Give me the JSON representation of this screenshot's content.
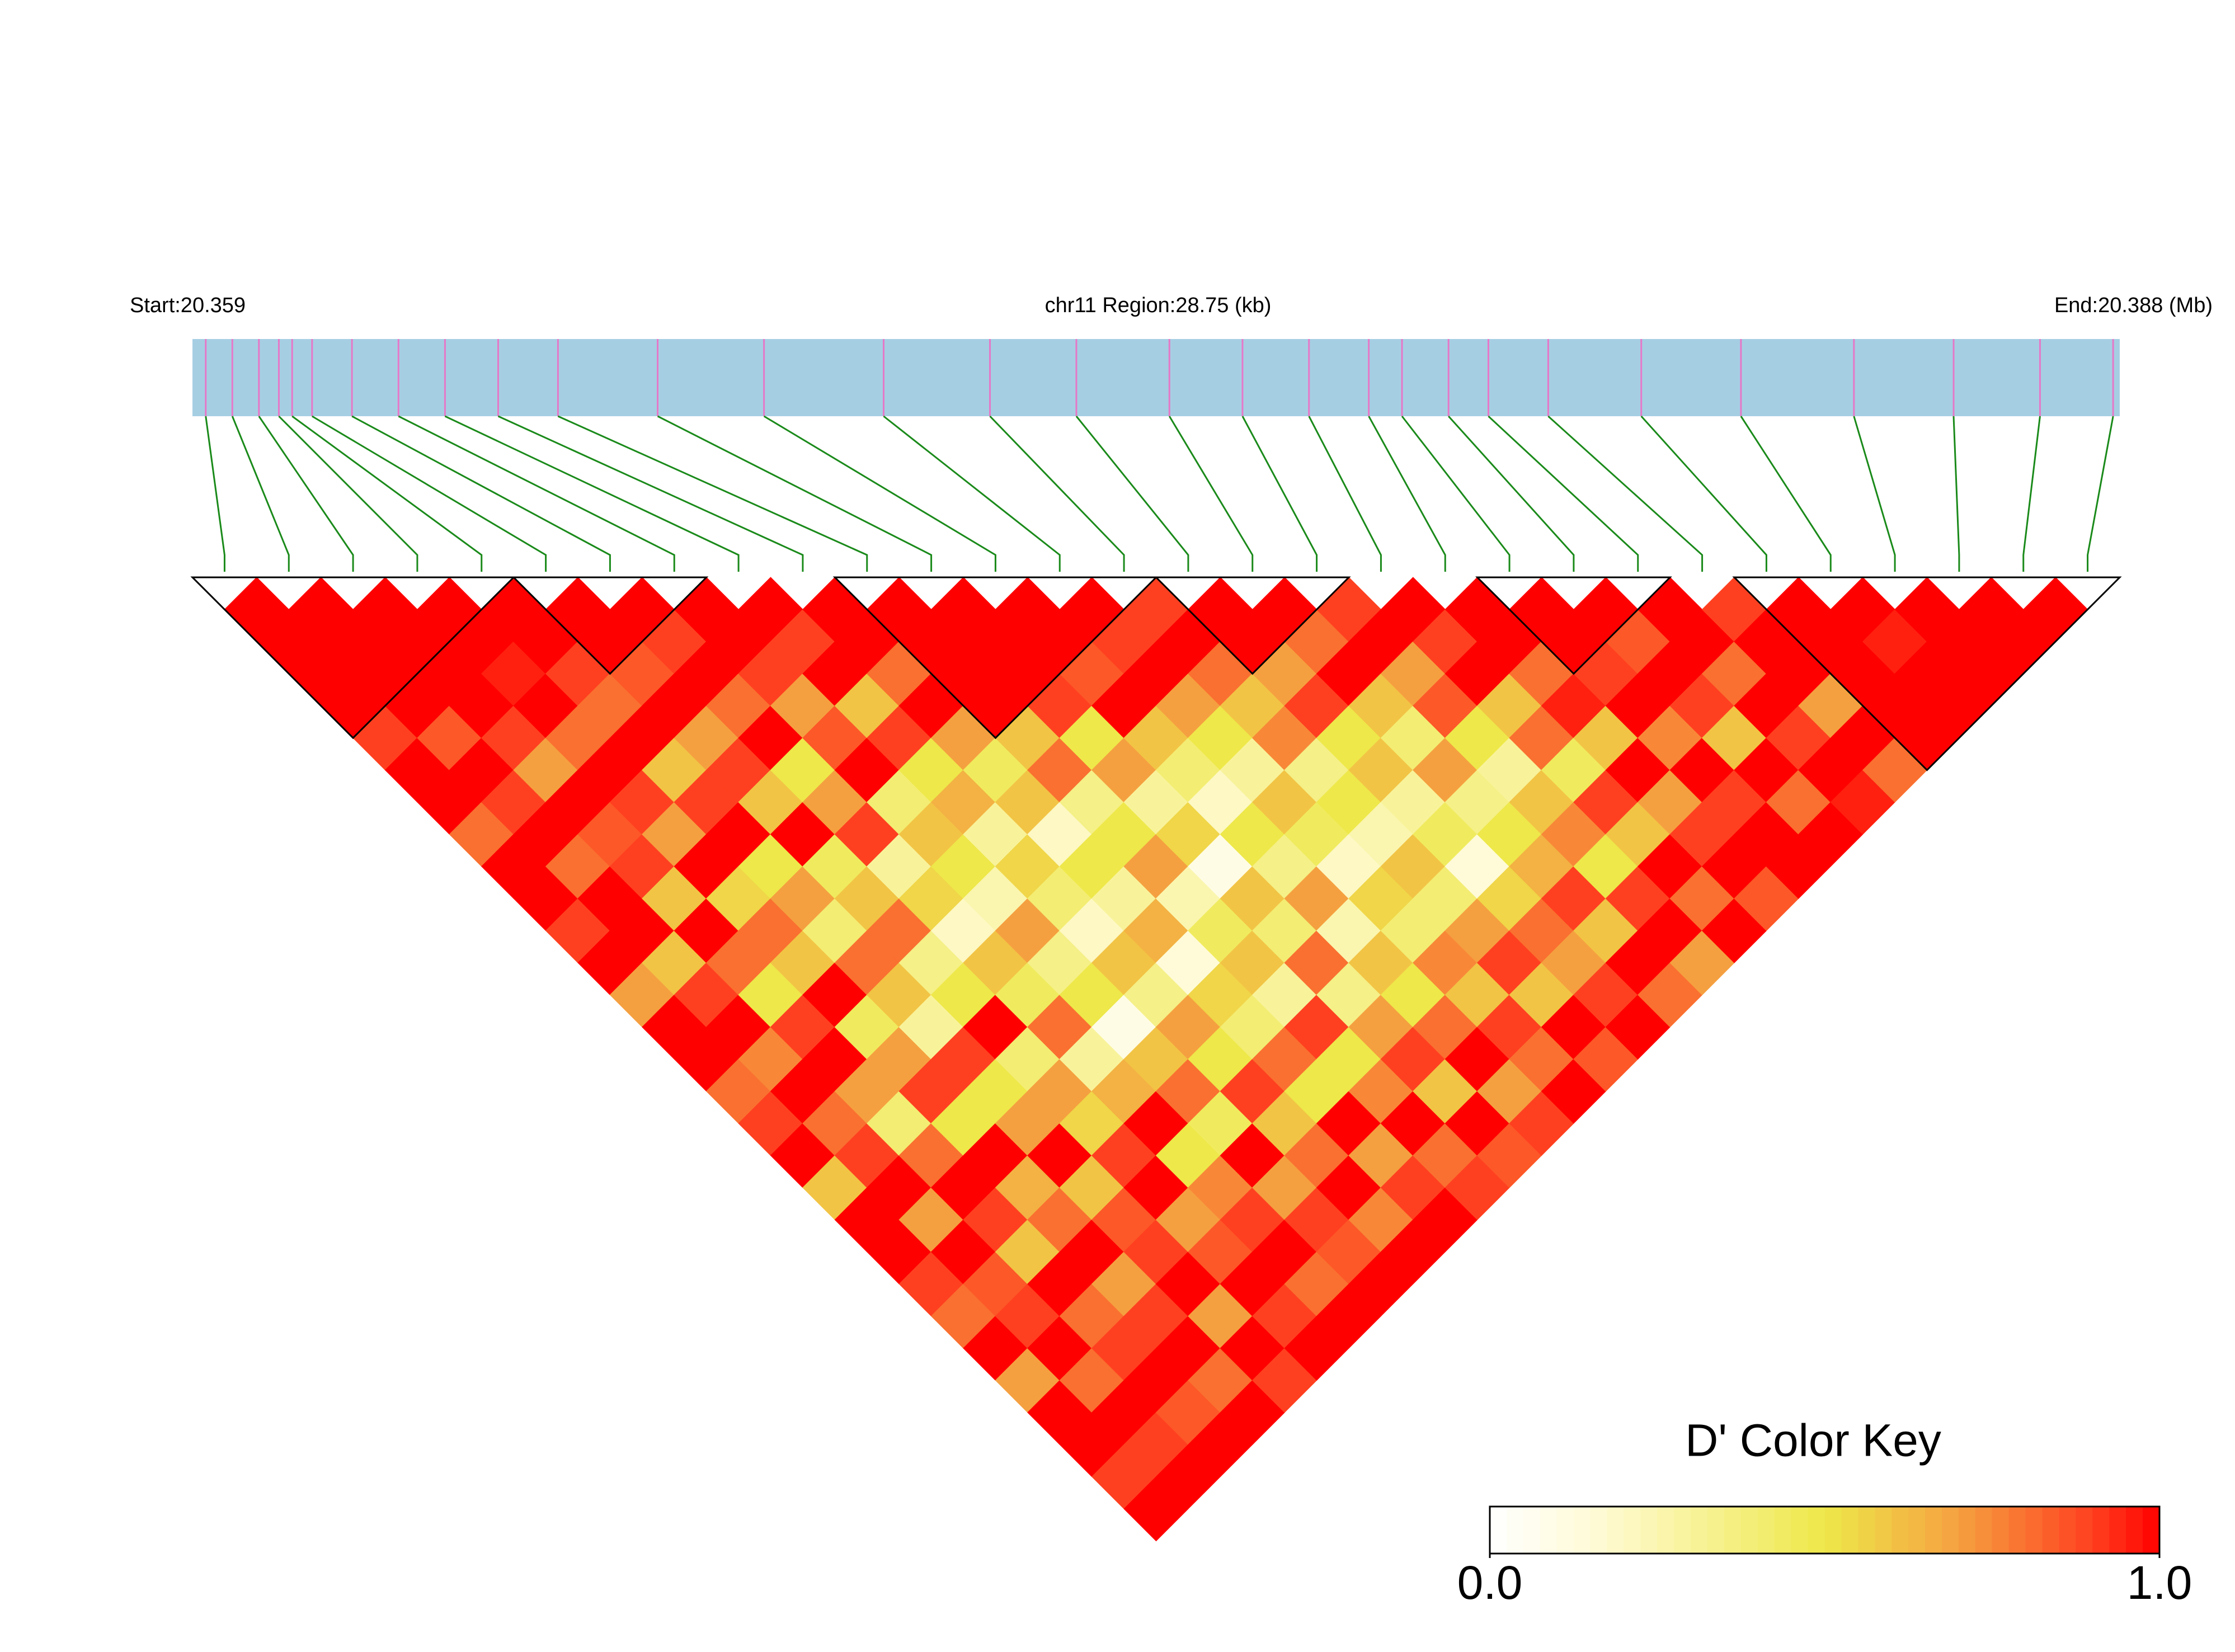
{
  "chart_data": {
    "type": "ld_heatmap",
    "start_label": "Start:20.359",
    "region_label": "chr11 Region:28.75 (kb)",
    "end_label": "End:20.388 (Mb)",
    "xlim": [
      20.359,
      20.388
    ],
    "positions": [
      20.3592,
      20.3596,
      20.36,
      20.3603,
      20.3605,
      20.3608,
      20.3614,
      20.3621,
      20.3628,
      20.3636,
      20.3645,
      20.366,
      20.3676,
      20.3694,
      20.371,
      20.3723,
      20.3737,
      20.3748,
      20.3758,
      20.3767,
      20.3772,
      20.3779,
      20.3785,
      20.3794,
      20.3808,
      20.3823,
      20.384,
      20.3855,
      20.3868,
      20.3879
    ],
    "matrix": [
      [
        1,
        1,
        1,
        1,
        0.9,
        1,
        1,
        0.8,
        1,
        1,
        0.9,
        1,
        0.7,
        1,
        1,
        0.8,
        0.9,
        1,
        0.6,
        1,
        1,
        0.9,
        0.8,
        1,
        0.7,
        1,
        1,
        0.9,
        1
      ],
      [
        1,
        1,
        1,
        1,
        0.85,
        1,
        0.9,
        1,
        0.8,
        1,
        1,
        0.6,
        0.9,
        1,
        0.75,
        1,
        0.8,
        0.9,
        1,
        0.7,
        1,
        0.85,
        0.9,
        1,
        0.8,
        1,
        0.9,
        1
      ],
      [
        1,
        1,
        1,
        1,
        0.9,
        0.7,
        1,
        0.85,
        0.9,
        0.6,
        1,
        0.8,
        0.5,
        0.9,
        1,
        0.7,
        0.4,
        0.8,
        1,
        0.9,
        0.6,
        1,
        0.8,
        0.9,
        1,
        0.85,
        1
      ],
      [
        1,
        1,
        0.95,
        1,
        0.8,
        1,
        0.9,
        0.7,
        1,
        0.55,
        0.8,
        0.6,
        1,
        0.45,
        0.7,
        0.9,
        0.5,
        1,
        0.65,
        0.8,
        1,
        0.7,
        0.9,
        1,
        0.8,
        1
      ],
      [
        1,
        1,
        0.9,
        0.8,
        1,
        0.6,
        0.9,
        1,
        0.5,
        0.7,
        0.4,
        0.8,
        0.6,
        0.3,
        0.9,
        0.5,
        0.7,
        1,
        0.6,
        0.85,
        0.9,
        1,
        0.7,
        1,
        0.9
      ],
      [
        1,
        1,
        0.85,
        1,
        0.7,
        0.9,
        0.6,
        1,
        0.45,
        0.6,
        0.8,
        0.35,
        0.5,
        1,
        0.4,
        0.7,
        0.55,
        0.9,
        1,
        0.7,
        0.85,
        1,
        0.9,
        1
      ],
      [
        1,
        0.9,
        1,
        0.8,
        1,
        0.5,
        0.7,
        0.9,
        0.3,
        0.55,
        0.2,
        0.6,
        0.45,
        0.8,
        0.3,
        0.65,
        1,
        0.5,
        0.75,
        0.9,
        1,
        0.8,
        1
      ],
      [
        1,
        1,
        0.9,
        0.7,
        0.85,
        1,
        0.4,
        0.6,
        0.5,
        0.25,
        0.7,
        0.35,
        0.5,
        0.1,
        0.6,
        0.8,
        0.45,
        1,
        0.7,
        0.9,
        0.85,
        1
      ],
      [
        1,
        0.9,
        1,
        0.6,
        0.9,
        0.5,
        0.65,
        0.3,
        0.55,
        0.4,
        0.2,
        0.6,
        0.35,
        0.7,
        0.5,
        0.9,
        0.6,
        0.8,
        1,
        0.75,
        1
      ],
      [
        1,
        1,
        0.8,
        1,
        0.7,
        0.45,
        0.6,
        0.2,
        0.5,
        0.3,
        0.65,
        0.15,
        0.55,
        0.4,
        0.8,
        0.5,
        1,
        0.7,
        0.9,
        1
      ],
      [
        1,
        1,
        1,
        1,
        0.6,
        0.8,
        0.35,
        0.5,
        0.7,
        0.25,
        0.45,
        0.6,
        0.3,
        0.9,
        0.5,
        0.75,
        1,
        0.8,
        0.9
      ],
      [
        1,
        1,
        1,
        0.9,
        0.5,
        0.7,
        0.3,
        0.55,
        0.1,
        0.6,
        0.4,
        0.8,
        0.35,
        0.7,
        0.9,
        0.6,
        1,
        0.85
      ],
      [
        1,
        1,
        0.85,
        1,
        0.6,
        0.4,
        0.2,
        0.5,
        0.35,
        0.7,
        0.25,
        0.6,
        0.5,
        0.8,
        1,
        0.7,
        0.9
      ],
      [
        1,
        0.9,
        1,
        0.7,
        0.5,
        0.3,
        0.6,
        0.45,
        0.2,
        0.55,
        0.4,
        0.75,
        0.6,
        0.9,
        0.8,
        1
      ],
      [
        0.9,
        1,
        0.8,
        0.6,
        0.75,
        0.35,
        0.5,
        0.25,
        0.6,
        0.4,
        0.7,
        0.9,
        0.6,
        1,
        0.85
      ],
      [
        1,
        1,
        0.7,
        0.9,
        0.5,
        0.6,
        0.3,
        0.45,
        0.15,
        0.55,
        0.8,
        0.7,
        0.9,
        1
      ],
      [
        1,
        0.8,
        1,
        0.6,
        0.4,
        0.7,
        0.35,
        0.5,
        0.65,
        0.9,
        0.6,
        1,
        0.8
      ],
      [
        0.9,
        1,
        0.7,
        0.85,
        0.5,
        0.3,
        0.6,
        0.75,
        0.5,
        0.9,
        1,
        0.7
      ],
      [
        1,
        0.9,
        1,
        0.6,
        0.8,
        0.45,
        0.9,
        0.6,
        1,
        0.8,
        1
      ],
      [
        1,
        1,
        0.8,
        0.95,
        0.6,
        1,
        0.7,
        0.9,
        1,
        0.85
      ],
      [
        1,
        1,
        0.9,
        1,
        0.75,
        1,
        0.9,
        1,
        1
      ],
      [
        1,
        0.85,
        1,
        0.9,
        0.6,
        1,
        0.8,
        1
      ],
      [
        1,
        1,
        0.8,
        1,
        0.9,
        1,
        0.95
      ],
      [
        0.9,
        1,
        1,
        0.7,
        1,
        0.8
      ],
      [
        1,
        1,
        1,
        1,
        1
      ],
      [
        1,
        0.95,
        1,
        1
      ],
      [
        1,
        1,
        1
      ],
      [
        1,
        1
      ],
      [
        1
      ]
    ],
    "blocks": [
      [
        0,
        4
      ],
      [
        5,
        7
      ],
      [
        10,
        14
      ],
      [
        15,
        17
      ],
      [
        20,
        22
      ],
      [
        24,
        29
      ]
    ],
    "colorbar_title": "D' Color Key",
    "colorbar_ticks": [
      {
        "value": 0,
        "label": "0.0"
      },
      {
        "value": 1,
        "label": "1.0"
      }
    ],
    "colorscale": [
      [
        0,
        "#ffffff"
      ],
      [
        0.15,
        "#fffbd8"
      ],
      [
        0.5,
        "#eee84a"
      ],
      [
        0.7,
        "#f5a040"
      ],
      [
        0.9,
        "#ff4020"
      ],
      [
        1,
        "#ff0000"
      ]
    ],
    "bar_color": "#a6cee3",
    "snp_line_color": "#e678c8",
    "connector_color": "#1a8a1a"
  }
}
